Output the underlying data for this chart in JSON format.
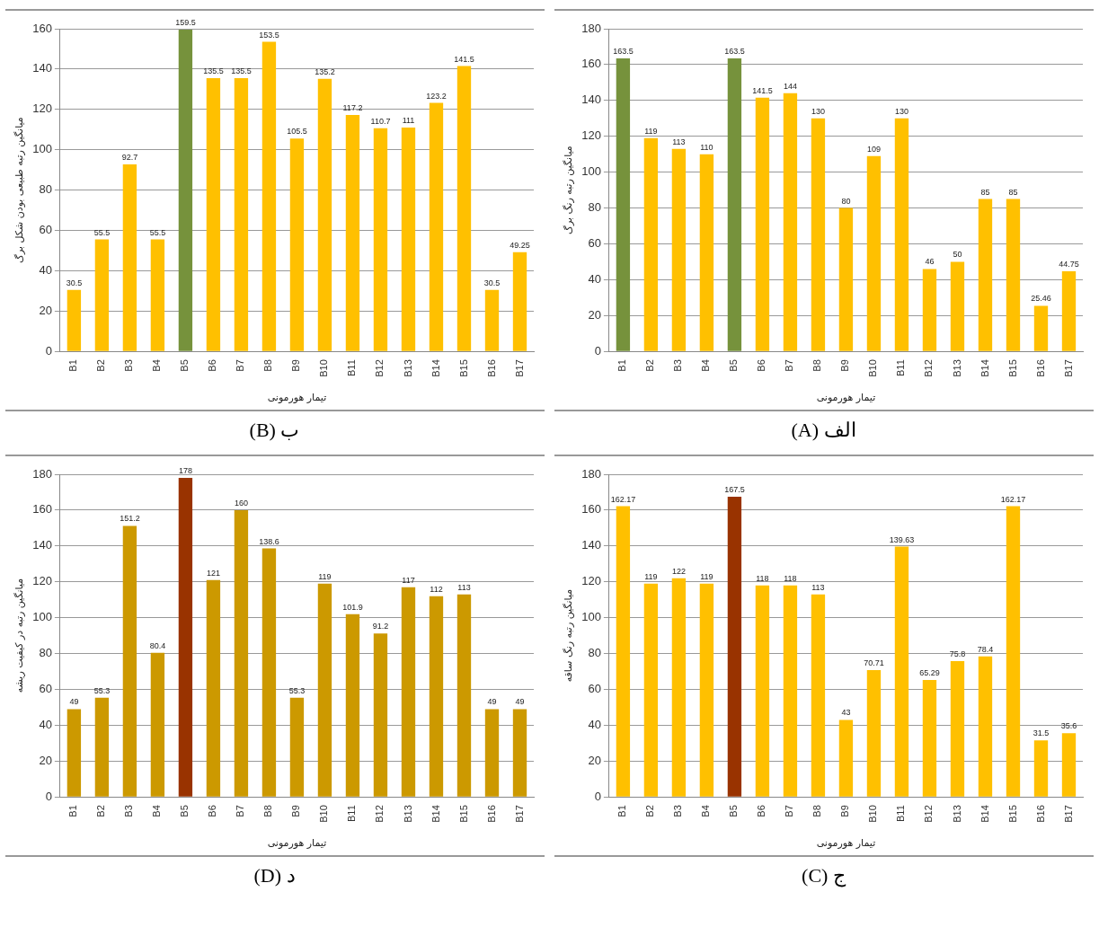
{
  "chart_data": [
    {
      "type": "bar",
      "title": "ب (B)",
      "xlabel": "تیمار هورمونی",
      "ylabel": "میانگین رتبه طبیعی بودن شکل برگ",
      "categories": [
        "B1",
        "B2",
        "B3",
        "B4",
        "B5",
        "B6",
        "B7",
        "B8",
        "B9",
        "B10",
        "B11",
        "B12",
        "B13",
        "B14",
        "B15",
        "B16",
        "B17"
      ],
      "values": [
        30.5,
        55.5,
        92.7,
        55.5,
        159.5,
        135.5,
        135.5,
        153.5,
        105.5,
        135.2,
        117.2,
        110.7,
        111,
        123.2,
        141.5,
        30.5,
        49.25
      ],
      "colors": [
        "#ffc000",
        "#ffc000",
        "#ffc000",
        "#ffc000",
        "#76923c",
        "#ffc000",
        "#ffc000",
        "#ffc000",
        "#ffc000",
        "#ffc000",
        "#ffc000",
        "#ffc000",
        "#ffc000",
        "#ffc000",
        "#ffc000",
        "#ffc000",
        "#ffc000"
      ],
      "ylim": [
        0,
        160
      ],
      "yticks": [
        0,
        20,
        40,
        60,
        80,
        100,
        120,
        140,
        160
      ],
      "grid": "y",
      "legend": false,
      "data_labels": true
    },
    {
      "type": "bar",
      "title": "الف (A)",
      "xlabel": "تیمار هورمونی",
      "ylabel": "میانگین رتبه رنگ برگ",
      "categories": [
        "B1",
        "B2",
        "B3",
        "B4",
        "B5",
        "B6",
        "B7",
        "B8",
        "B9",
        "B10",
        "B11",
        "B12",
        "B13",
        "B14",
        "B15",
        "B16",
        "B17"
      ],
      "values": [
        163.5,
        119,
        113,
        110,
        163.5,
        141.5,
        144,
        130,
        80,
        109,
        130,
        46,
        50,
        85,
        85,
        25.46,
        44.75
      ],
      "colors": [
        "#76923c",
        "#ffc000",
        "#ffc000",
        "#ffc000",
        "#76923c",
        "#ffc000",
        "#ffc000",
        "#ffc000",
        "#ffc000",
        "#ffc000",
        "#ffc000",
        "#ffc000",
        "#ffc000",
        "#ffc000",
        "#ffc000",
        "#ffc000",
        "#ffc000"
      ],
      "ylim": [
        0,
        180
      ],
      "yticks": [
        0,
        20,
        40,
        60,
        80,
        100,
        120,
        140,
        160,
        180
      ],
      "grid": "y",
      "legend": false,
      "data_labels": true
    },
    {
      "type": "bar",
      "title": "د (D)",
      "xlabel": "تیمار هورمونی",
      "ylabel": "میانگین رتبه در کیفیت ریشه",
      "categories": [
        "B1",
        "B2",
        "B3",
        "B4",
        "B5",
        "B6",
        "B7",
        "B8",
        "B9",
        "B10",
        "B11",
        "B12",
        "B13",
        "B14",
        "B15",
        "B16",
        "B17"
      ],
      "values": [
        49,
        55.3,
        151.2,
        80.4,
        178,
        121,
        160,
        138.6,
        55.3,
        119,
        101.9,
        91.2,
        117,
        112,
        113,
        49,
        49
      ],
      "colors": [
        "#cc9900",
        "#cc9900",
        "#cc9900",
        "#cc9900",
        "#993300",
        "#cc9900",
        "#cc9900",
        "#cc9900",
        "#cc9900",
        "#cc9900",
        "#cc9900",
        "#cc9900",
        "#cc9900",
        "#cc9900",
        "#cc9900",
        "#cc9900",
        "#cc9900"
      ],
      "ylim": [
        0,
        180
      ],
      "yticks": [
        0,
        20,
        40,
        60,
        80,
        100,
        120,
        140,
        160,
        180
      ],
      "grid": "y",
      "legend": false,
      "data_labels": true
    },
    {
      "type": "bar",
      "title": "ج (C)",
      "xlabel": "تیمار هورمونی",
      "ylabel": "میانگین رتبه رنگ ساقه",
      "categories": [
        "B1",
        "B2",
        "B3",
        "B4",
        "B5",
        "B6",
        "B7",
        "B8",
        "B9",
        "B10",
        "B11",
        "B12",
        "B13",
        "B14",
        "B15",
        "B16",
        "B17"
      ],
      "values": [
        162.17,
        119,
        122,
        119,
        167.5,
        118,
        118,
        113,
        43,
        70.71,
        139.63,
        65.29,
        75.8,
        78.4,
        162.17,
        31.5,
        35.6
      ],
      "colors": [
        "#ffc000",
        "#ffc000",
        "#ffc000",
        "#ffc000",
        "#993300",
        "#ffc000",
        "#ffc000",
        "#ffc000",
        "#ffc000",
        "#ffc000",
        "#ffc000",
        "#ffc000",
        "#ffc000",
        "#ffc000",
        "#ffc000",
        "#ffc000",
        "#ffc000"
      ],
      "ylim": [
        0,
        180
      ],
      "yticks": [
        0,
        20,
        40,
        60,
        80,
        100,
        120,
        140,
        160,
        180
      ],
      "grid": "y",
      "legend": false,
      "data_labels": true
    }
  ]
}
